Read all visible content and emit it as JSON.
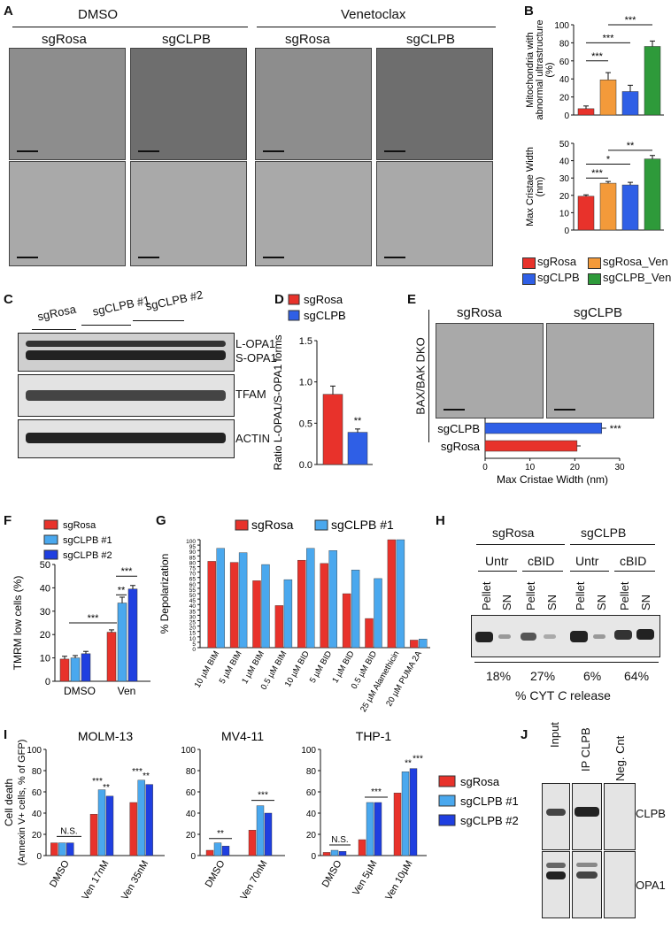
{
  "panels": [
    "A",
    "B",
    "C",
    "D",
    "E",
    "F",
    "G",
    "H",
    "I",
    "J"
  ],
  "panelA": {
    "treatments": [
      "DMSO",
      "Venetoclax"
    ],
    "conditions": [
      "sgRosa",
      "sgCLPB",
      "sgRosa",
      "sgCLPB"
    ]
  },
  "panelB": {
    "legend": [
      "sgRosa",
      "sgRosa_Ven",
      "sgCLPB",
      "sgCLPB_Ven"
    ],
    "colors": {
      "sgRosa": "#e8322b",
      "sgRosa_Ven": "#f39a3a",
      "sgCLPB": "#2f5fe6",
      "sgCLPB_Ven": "#2e9a3a"
    }
  },
  "panelC": {
    "lane_groups": [
      "sgRosa",
      "sgCLPB #1",
      "sgCLPB #2"
    ],
    "band_labels": [
      "L-OPA1",
      "S-OPA1",
      "TFAM",
      "ACTIN"
    ]
  },
  "panelE": {
    "conditions": [
      "sgRosa",
      "sgCLPB"
    ],
    "side_label": "BAX/BAK DKO"
  },
  "panelH": {
    "groups": [
      "sgRosa",
      "sgCLPB"
    ],
    "treatments": [
      "Untr",
      "cBID",
      "Untr",
      "cBID"
    ],
    "fractions": [
      "Pellet",
      "SN",
      "Pellet",
      "SN",
      "Pellet",
      "SN",
      "Pellet",
      "SN"
    ],
    "release": [
      "18%",
      "27%",
      "6%",
      "64%"
    ],
    "xlabel_pre": "% CYT ",
    "xlabel_c": "C",
    "xlabel_post": " release"
  },
  "panelJ": {
    "lanes": [
      "Input",
      "IP CLPB",
      "Neg. Cnt"
    ],
    "bands": [
      "CLPB",
      "OPA1"
    ]
  },
  "chart_data": [
    {
      "panel": "B-top",
      "type": "bar",
      "categories": [
        "sgRosa",
        "sgRosa_Ven",
        "sgCLPB",
        "sgCLPB_Ven"
      ],
      "values": [
        7,
        39,
        26,
        76
      ],
      "errors": [
        3,
        8,
        7,
        6
      ],
      "ylabel": "Mitochondria with abnormal ultrastructure (%)",
      "ylim": [
        0,
        100
      ],
      "yticks": [
        0,
        20,
        40,
        60,
        80,
        100
      ],
      "significance": [
        "***",
        "***",
        "***"
      ]
    },
    {
      "panel": "B-bottom",
      "type": "bar",
      "categories": [
        "sgRosa",
        "sgRosa_Ven",
        "sgCLPB",
        "sgCLPB_Ven"
      ],
      "values": [
        19.5,
        27,
        26,
        41
      ],
      "errors": [
        0.8,
        1,
        1.5,
        2
      ],
      "ylabel": "Max Cristae Width (nm)",
      "ylim": [
        0,
        50
      ],
      "yticks": [
        0,
        10,
        20,
        30,
        40,
        50
      ],
      "significance": [
        "***",
        "*",
        "**"
      ]
    },
    {
      "panel": "D",
      "type": "bar",
      "categories": [
        "sgRosa",
        "sgCLPB"
      ],
      "values": [
        0.85,
        0.39
      ],
      "errors": [
        0.1,
        0.04
      ],
      "ylabel": "Ratio L-OPA1/S-OPA1 forms",
      "ylim": [
        0,
        1.5
      ],
      "yticks": [
        0.0,
        0.5,
        1.0,
        1.5
      ],
      "significance": [
        "**"
      ],
      "legend": [
        "sgRosa",
        "sgCLPB"
      ]
    },
    {
      "panel": "E",
      "type": "bar",
      "orientation": "horizontal",
      "categories": [
        "sgCLPB",
        "sgRosa"
      ],
      "values": [
        26,
        20.5
      ],
      "errors": [
        1,
        0.8
      ],
      "xlabel": "Max Cristae Width (nm)",
      "xlim": [
        0,
        30
      ],
      "xticks": [
        0,
        10,
        20,
        30
      ],
      "significance": [
        "***"
      ]
    },
    {
      "panel": "F",
      "type": "bar",
      "categories": [
        "DMSO",
        "Ven"
      ],
      "series": [
        {
          "name": "sgRosa",
          "values": [
            9.5,
            21
          ],
          "errors": [
            1.2,
            1
          ]
        },
        {
          "name": "sgCLPB #1",
          "values": [
            10,
            33.5
          ],
          "errors": [
            1,
            2.5
          ]
        },
        {
          "name": "sgCLPB #2",
          "values": [
            11.8,
            39.5
          ],
          "errors": [
            1,
            1.5
          ]
        }
      ],
      "ylabel": "TMRM low cells (%)",
      "ylim": [
        0,
        50
      ],
      "yticks": [
        0,
        10,
        20,
        30,
        40,
        50
      ],
      "significance": [
        "***",
        "**",
        "***"
      ]
    },
    {
      "panel": "G",
      "type": "bar",
      "categories": [
        "10 µM BIM",
        "5 µM BIM",
        "1 µM BIM",
        "0.5 µM BIM",
        "10 µM BID",
        "5 µM BID",
        "1 µM BID",
        "0.5 µM BID",
        "25 µM Alamethicin",
        "20 µM PUMA 2A"
      ],
      "series": [
        {
          "name": "sgRosa",
          "values": [
            80,
            79,
            62,
            39,
            81,
            78,
            50,
            27,
            100,
            7
          ]
        },
        {
          "name": "sgCLPB #1",
          "values": [
            92,
            88,
            77,
            63,
            92,
            90,
            72,
            64,
            100,
            8
          ]
        }
      ],
      "ylabel": "% Depolarization",
      "ylim": [
        0,
        100
      ],
      "yticks": [
        0,
        5,
        10,
        15,
        20,
        25,
        30,
        35,
        40,
        45,
        50,
        55,
        60,
        65,
        70,
        75,
        80,
        85,
        90,
        95,
        100
      ]
    },
    {
      "panel": "I",
      "type": "bar",
      "ylabel": "Cell death (Annexin V+ cells, % of GFP)",
      "legend": [
        "sgRosa",
        "sgCLPB #1",
        "sgCLPB #2"
      ],
      "subplots": [
        {
          "title": "MOLM-13",
          "categories": [
            "DMSO",
            "Ven 17nM",
            "Ven 35nM"
          ],
          "series": [
            {
              "name": "sgRosa",
              "values": [
                12,
                39,
                50
              ]
            },
            {
              "name": "sgCLPB #1",
              "values": [
                12,
                62,
                71
              ]
            },
            {
              "name": "sgCLPB #2",
              "values": [
                12,
                56,
                67
              ]
            }
          ],
          "annotations": [
            "N.S.",
            "***",
            "**",
            "***",
            "**"
          ]
        },
        {
          "title": "MV4-11",
          "categories": [
            "DMSO",
            "Ven 70nM"
          ],
          "series": [
            {
              "name": "sgRosa",
              "values": [
                5,
                24
              ]
            },
            {
              "name": "sgCLPB #1",
              "values": [
                12,
                47
              ]
            },
            {
              "name": "sgCLPB #2",
              "values": [
                9,
                40
              ]
            }
          ],
          "annotations": [
            "**",
            "***"
          ]
        },
        {
          "title": "THP-1",
          "categories": [
            "DMSO",
            "Ven 5µM",
            "Ven 10µM"
          ],
          "series": [
            {
              "name": "sgRosa",
              "values": [
                3,
                15,
                59
              ]
            },
            {
              "name": "sgCLPB #1",
              "values": [
                5,
                50,
                79
              ]
            },
            {
              "name": "sgCLPB #2",
              "values": [
                4,
                50,
                82
              ]
            }
          ],
          "annotations": [
            "N.S.",
            "***",
            "**",
            "***"
          ]
        }
      ],
      "ylim": [
        0,
        100
      ],
      "yticks": [
        0,
        20,
        40,
        60,
        80,
        100
      ]
    }
  ]
}
